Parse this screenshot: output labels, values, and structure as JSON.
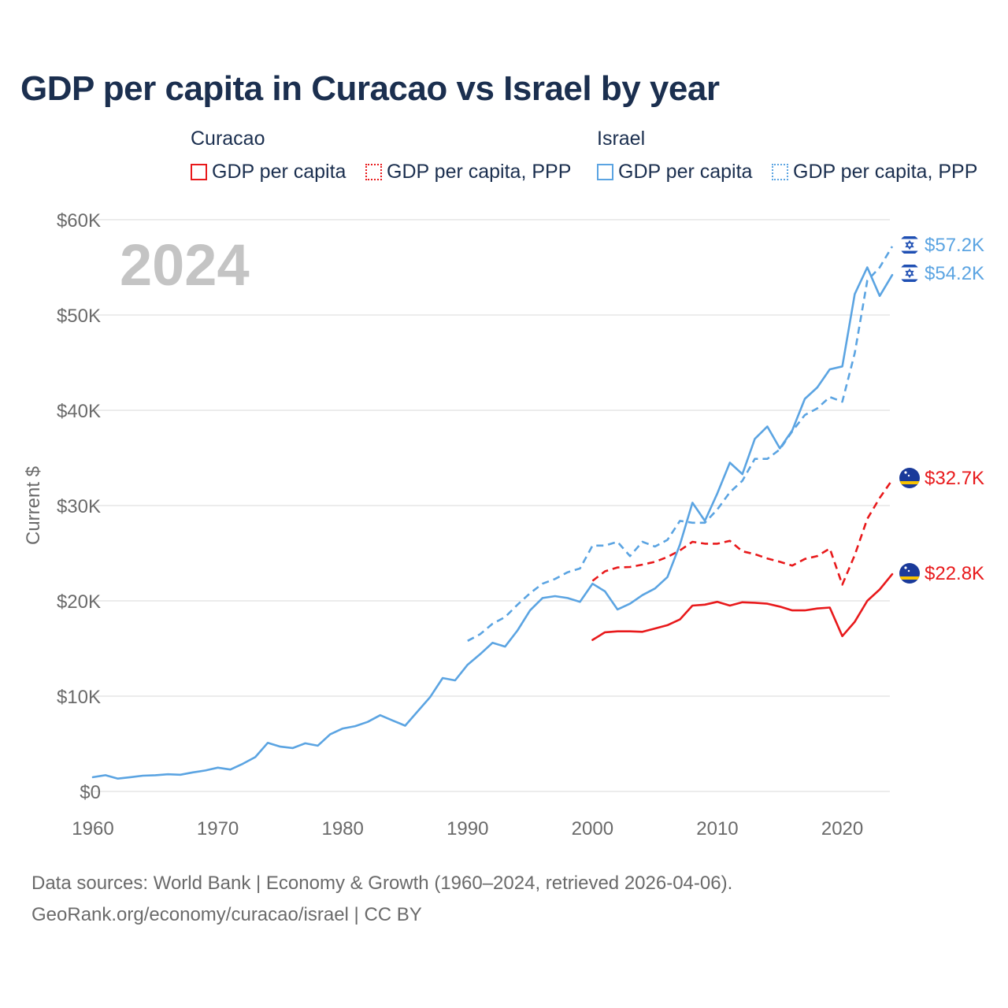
{
  "chart_data": {
    "type": "line",
    "title": "GDP per capita in Curacao vs Israel by year",
    "ylabel": "Current $",
    "xlabel": "",
    "xlim": [
      1960,
      2024
    ],
    "ylim": [
      0,
      60000
    ],
    "year_watermark": "2024",
    "x_ticks": [
      {
        "value": 1960,
        "label": "1960"
      },
      {
        "value": 1970,
        "label": "1970"
      },
      {
        "value": 1980,
        "label": "1980"
      },
      {
        "value": 1990,
        "label": "1990"
      },
      {
        "value": 2000,
        "label": "2000"
      },
      {
        "value": 2010,
        "label": "2010"
      },
      {
        "value": 2020,
        "label": "2020"
      }
    ],
    "y_ticks": [
      {
        "value": 0,
        "label": "$0"
      },
      {
        "value": 10000,
        "label": "$10K"
      },
      {
        "value": 20000,
        "label": "$20K"
      },
      {
        "value": 30000,
        "label": "$30K"
      },
      {
        "value": 40000,
        "label": "$40K"
      },
      {
        "value": 50000,
        "label": "$50K"
      },
      {
        "value": 60000,
        "label": "$60K"
      }
    ],
    "legend": [
      {
        "group": "Curacao",
        "items": [
          "GDP per capita",
          "GDP per capita, PPP"
        ]
      },
      {
        "group": "Israel",
        "items": [
          "GDP per capita",
          "GDP per capita, PPP"
        ]
      }
    ],
    "series": [
      {
        "name": "Curacao GDP per capita",
        "country": "Curacao",
        "dashed": false,
        "color": "#e8191b",
        "end_label": "$22.8K",
        "points": [
          [
            2000,
            15900
          ],
          [
            2001,
            16700
          ],
          [
            2002,
            16800
          ],
          [
            2003,
            16800
          ],
          [
            2004,
            16750
          ],
          [
            2005,
            17100
          ],
          [
            2006,
            17450
          ],
          [
            2007,
            18050
          ],
          [
            2008,
            19500
          ],
          [
            2009,
            19600
          ],
          [
            2010,
            19900
          ],
          [
            2011,
            19500
          ],
          [
            2012,
            19850
          ],
          [
            2013,
            19800
          ],
          [
            2014,
            19700
          ],
          [
            2015,
            19400
          ],
          [
            2016,
            19000
          ],
          [
            2017,
            19000
          ],
          [
            2018,
            19200
          ],
          [
            2019,
            19300
          ],
          [
            2020,
            16300
          ],
          [
            2021,
            17800
          ],
          [
            2022,
            20000
          ],
          [
            2023,
            21200
          ],
          [
            2024,
            22800
          ]
        ]
      },
      {
        "name": "Curacao GDP per capita, PPP",
        "country": "Curacao",
        "dashed": true,
        "color": "#e8191b",
        "end_label": "$32.7K",
        "points": [
          [
            2000,
            22100
          ],
          [
            2001,
            23100
          ],
          [
            2002,
            23500
          ],
          [
            2003,
            23550
          ],
          [
            2004,
            23800
          ],
          [
            2005,
            24100
          ],
          [
            2006,
            24600
          ],
          [
            2007,
            25300
          ],
          [
            2008,
            26200
          ],
          [
            2009,
            26000
          ],
          [
            2010,
            26000
          ],
          [
            2011,
            26300
          ],
          [
            2012,
            25200
          ],
          [
            2013,
            24900
          ],
          [
            2014,
            24450
          ],
          [
            2015,
            24100
          ],
          [
            2016,
            23700
          ],
          [
            2017,
            24400
          ],
          [
            2018,
            24700
          ],
          [
            2019,
            25500
          ],
          [
            2020,
            21700
          ],
          [
            2021,
            24800
          ],
          [
            2022,
            28600
          ],
          [
            2023,
            30800
          ],
          [
            2024,
            32700
          ]
        ]
      },
      {
        "name": "Israel GDP per capita",
        "country": "Israel",
        "dashed": false,
        "color": "#5ba4e2",
        "end_label": "$54.2K",
        "points": [
          [
            1960,
            1500
          ],
          [
            1961,
            1700
          ],
          [
            1962,
            1350
          ],
          [
            1963,
            1500
          ],
          [
            1964,
            1650
          ],
          [
            1965,
            1700
          ],
          [
            1966,
            1800
          ],
          [
            1967,
            1750
          ],
          [
            1968,
            2000
          ],
          [
            1969,
            2200
          ],
          [
            1970,
            2500
          ],
          [
            1971,
            2300
          ],
          [
            1972,
            2900
          ],
          [
            1973,
            3600
          ],
          [
            1974,
            5100
          ],
          [
            1975,
            4700
          ],
          [
            1976,
            4550
          ],
          [
            1977,
            5050
          ],
          [
            1978,
            4800
          ],
          [
            1979,
            6000
          ],
          [
            1980,
            6600
          ],
          [
            1981,
            6850
          ],
          [
            1982,
            7300
          ],
          [
            1983,
            8000
          ],
          [
            1984,
            7450
          ],
          [
            1985,
            6900
          ],
          [
            1986,
            8400
          ],
          [
            1987,
            9900
          ],
          [
            1988,
            11900
          ],
          [
            1989,
            11650
          ],
          [
            1990,
            13300
          ],
          [
            1991,
            14400
          ],
          [
            1992,
            15600
          ],
          [
            1993,
            15200
          ],
          [
            1994,
            16900
          ],
          [
            1995,
            19000
          ],
          [
            1996,
            20300
          ],
          [
            1997,
            20500
          ],
          [
            1998,
            20300
          ],
          [
            1999,
            19900
          ],
          [
            2000,
            21800
          ],
          [
            2001,
            21000
          ],
          [
            2002,
            19100
          ],
          [
            2003,
            19700
          ],
          [
            2004,
            20600
          ],
          [
            2005,
            21300
          ],
          [
            2006,
            22500
          ],
          [
            2007,
            25900
          ],
          [
            2008,
            30300
          ],
          [
            2009,
            28400
          ],
          [
            2010,
            31300
          ],
          [
            2011,
            34500
          ],
          [
            2012,
            33300
          ],
          [
            2013,
            37000
          ],
          [
            2014,
            38300
          ],
          [
            2015,
            36000
          ],
          [
            2016,
            37900
          ],
          [
            2017,
            41200
          ],
          [
            2018,
            42400
          ],
          [
            2019,
            44300
          ],
          [
            2020,
            44600
          ],
          [
            2021,
            52200
          ],
          [
            2022,
            55000
          ],
          [
            2023,
            52000
          ],
          [
            2024,
            54200
          ]
        ]
      },
      {
        "name": "Israel GDP per capita, PPP",
        "country": "Israel",
        "dashed": true,
        "color": "#5ba4e2",
        "end_label": "$57.2K",
        "points": [
          [
            1990,
            15800
          ],
          [
            1991,
            16500
          ],
          [
            1992,
            17600
          ],
          [
            1993,
            18300
          ],
          [
            1994,
            19600
          ],
          [
            1995,
            20800
          ],
          [
            1996,
            21800
          ],
          [
            1997,
            22300
          ],
          [
            1998,
            23000
          ],
          [
            1999,
            23400
          ],
          [
            2000,
            25800
          ],
          [
            2001,
            25800
          ],
          [
            2002,
            26200
          ],
          [
            2003,
            24700
          ],
          [
            2004,
            26200
          ],
          [
            2005,
            25700
          ],
          [
            2006,
            26400
          ],
          [
            2007,
            28400
          ],
          [
            2008,
            28200
          ],
          [
            2009,
            28200
          ],
          [
            2010,
            29600
          ],
          [
            2011,
            31400
          ],
          [
            2012,
            32600
          ],
          [
            2013,
            34900
          ],
          [
            2014,
            34900
          ],
          [
            2015,
            35900
          ],
          [
            2016,
            37800
          ],
          [
            2017,
            39500
          ],
          [
            2018,
            40200
          ],
          [
            2019,
            41400
          ],
          [
            2020,
            40900
          ],
          [
            2021,
            46000
          ],
          [
            2022,
            53600
          ],
          [
            2023,
            55000
          ],
          [
            2024,
            57200
          ]
        ]
      }
    ]
  },
  "footer": {
    "line1": "Data sources: World Bank | Economy & Growth (1960–2024, retrieved 2026-04-06).",
    "line2": "GeoRank.org/economy/curacao/israel | CC BY"
  },
  "colors": {
    "curacao": "#e8191b",
    "israel": "#5ba4e2",
    "title": "#1b2f4f",
    "axis_text": "#6a6a6a",
    "grid": "#e6e6e6",
    "watermark": "#c4c4c4"
  }
}
